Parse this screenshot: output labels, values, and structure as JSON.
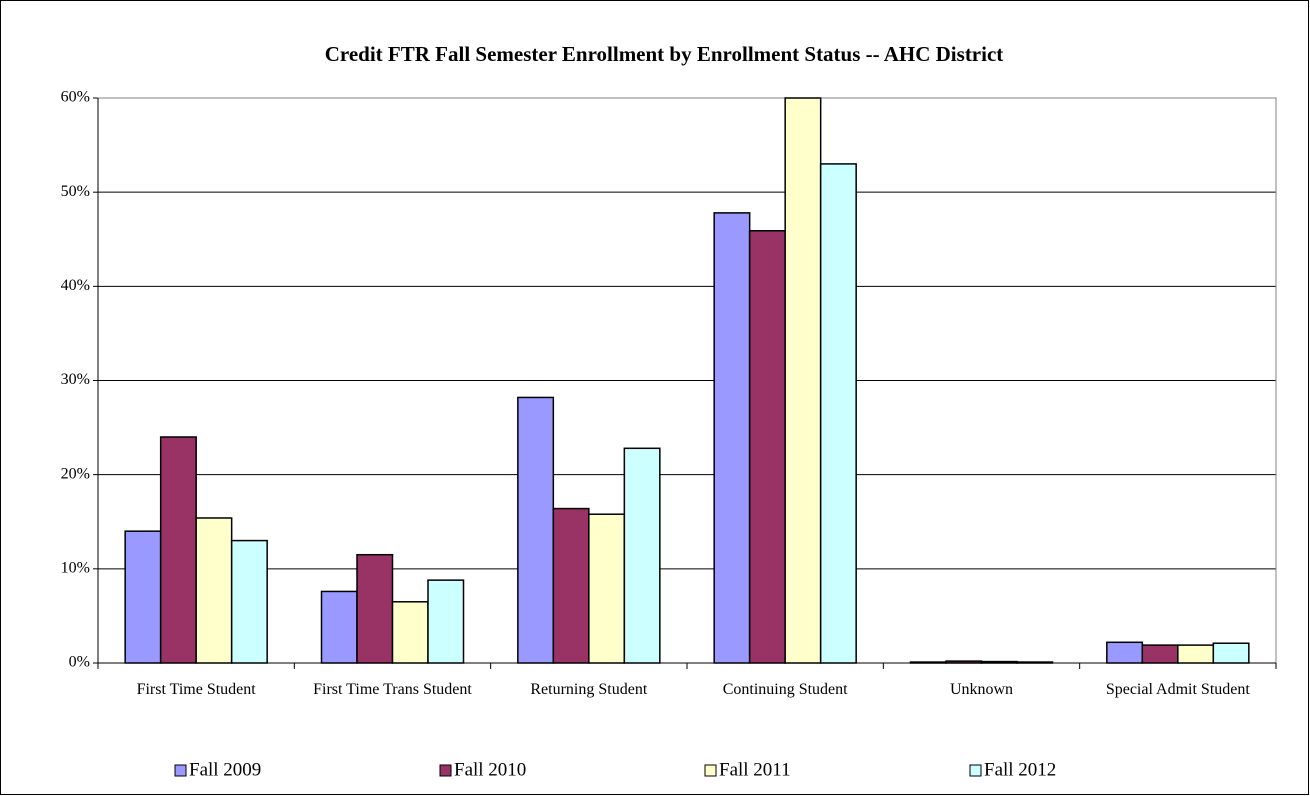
{
  "chart_data": {
    "type": "bar",
    "title": "Credit FTR Fall Semester Enrollment by Enrollment Status -- AHC District",
    "categories": [
      "First Time Student",
      "First Time Trans Student",
      "Returning Student",
      "Continuing Student",
      "Unknown",
      "Special Admit Student"
    ],
    "series": [
      {
        "name": "Fall 2009",
        "color": "#9999ff",
        "values": [
          14.0,
          7.6,
          28.2,
          47.8,
          0.1,
          2.2
        ]
      },
      {
        "name": "Fall 2010",
        "color": "#993366",
        "values": [
          24.0,
          11.5,
          16.4,
          45.9,
          0.2,
          1.9
        ]
      },
      {
        "name": "Fall 2011",
        "color": "#ffffcc",
        "values": [
          15.4,
          6.5,
          15.8,
          60.0,
          0.15,
          1.9
        ]
      },
      {
        "name": "Fall 2012",
        "color": "#ccffff",
        "values": [
          13.0,
          8.8,
          22.8,
          53.0,
          0.1,
          2.1
        ]
      }
    ],
    "ylim": [
      0,
      60
    ],
    "yticks": [
      {
        "value": 0,
        "label": "0%"
      },
      {
        "value": 10,
        "label": "10%"
      },
      {
        "value": 20,
        "label": "20%"
      },
      {
        "value": 30,
        "label": "30%"
      },
      {
        "value": 40,
        "label": "40%"
      },
      {
        "value": 50,
        "label": "50%"
      },
      {
        "value": 60,
        "label": "60%"
      }
    ],
    "grid": true,
    "legend": "bottom"
  }
}
